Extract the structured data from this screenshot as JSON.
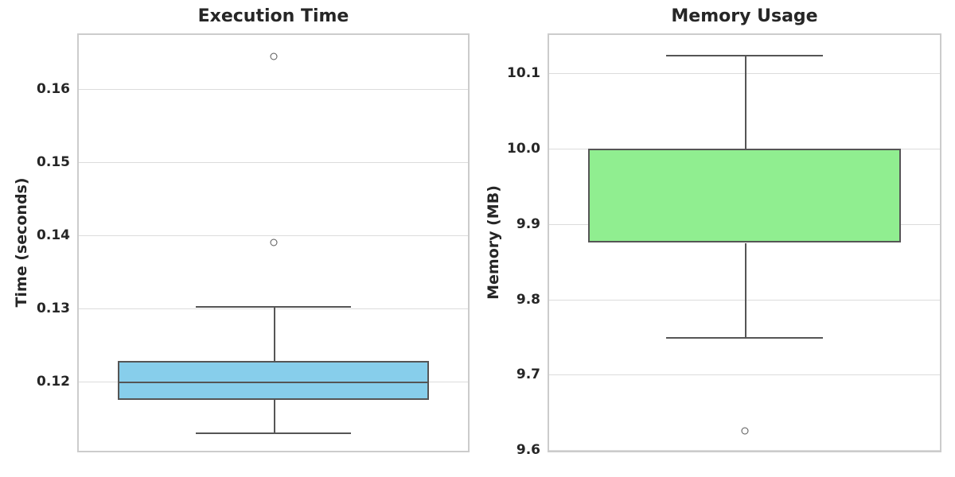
{
  "figure": {
    "background": "#ffffff",
    "text_color": "#262626",
    "grid_color": "#dcdcdc",
    "spine_color": "#cccccc",
    "line_color": "#555555"
  },
  "chart_data": [
    {
      "type": "box",
      "title": "Execution Time",
      "xlabel": "",
      "ylabel": "Time (seconds)",
      "ylim": [
        0.1105,
        0.1674
      ],
      "yticks": [
        0.12,
        0.13,
        0.14,
        0.15,
        0.16
      ],
      "ytick_labels": [
        "0.12",
        "0.13",
        "0.14",
        "0.15",
        "0.16"
      ],
      "grid": true,
      "legend": false,
      "box_fill": "#87CEEB",
      "box_edge": "#555555",
      "stats": {
        "whisker_low": 0.113,
        "q1": 0.1175,
        "median": 0.12,
        "q3": 0.1228,
        "whisker_high": 0.1303,
        "outliers": [
          0.139,
          0.1645
        ]
      }
    },
    {
      "type": "box",
      "title": "Memory Usage",
      "xlabel": "",
      "ylabel": "Memory (MB)",
      "ylim": [
        9.599,
        10.151
      ],
      "yticks": [
        9.6,
        9.7,
        9.8,
        9.9,
        10.0,
        10.1
      ],
      "ytick_labels": [
        "9.6",
        "9.7",
        "9.8",
        "9.9",
        "10.0",
        "10.1"
      ],
      "grid": true,
      "legend": false,
      "box_fill": "#90EE90",
      "box_edge": "#555555",
      "stats": {
        "whisker_low": 9.75,
        "q1": 9.875,
        "median": 10.0,
        "q3": 10.0,
        "whisker_high": 10.125,
        "outliers": [
          9.625
        ]
      }
    }
  ]
}
